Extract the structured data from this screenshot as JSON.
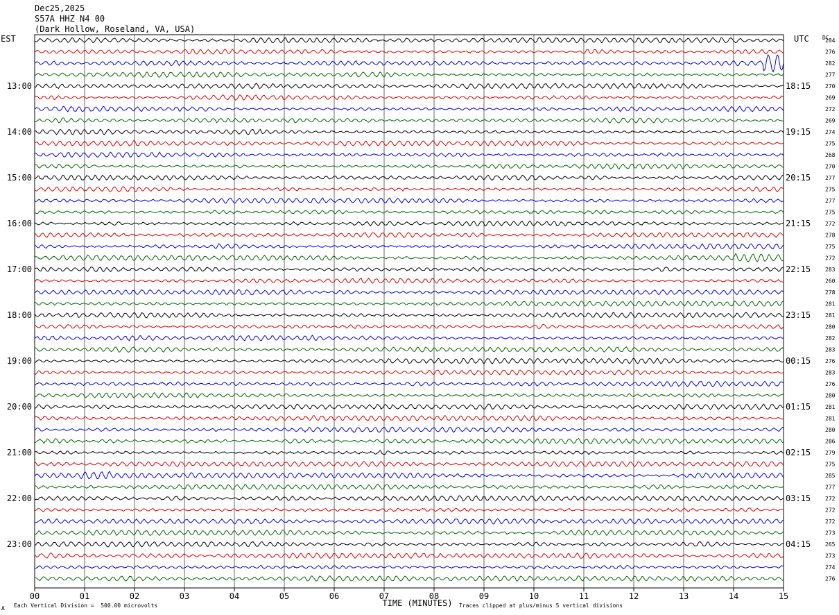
{
  "header": {
    "date": "Dec25,2025",
    "station": "S57A HHZ N4 00",
    "location": "(Dark Hollow, Roseland, VA, USA)"
  },
  "corner": {
    "left_tz": "EST",
    "right_tz": "UTC",
    "dc_label": "DC"
  },
  "footer": {
    "division_note": "Each Vertical Division =  500.00 microvolts",
    "clip_note": "Traces clipped at plus/minus 5 vertical divisions",
    "corner_mark": "A"
  },
  "colors": {
    "cycle": [
      "#000000",
      "#dd0000",
      "#0000dd",
      "#006600"
    ],
    "grid": "#000000"
  },
  "chart_data": {
    "type": "helicorder",
    "xlabel": "TIME (MINUTES)",
    "x_ticks": [
      "00",
      "01",
      "02",
      "03",
      "04",
      "05",
      "06",
      "07",
      "08",
      "09",
      "10",
      "11",
      "12",
      "13",
      "14",
      "15"
    ],
    "xlim": [
      0,
      15
    ],
    "rows_per_hour": 4,
    "est_labels": [
      "13:00",
      "14:00",
      "15:00",
      "16:00",
      "17:00",
      "18:00",
      "19:00",
      "20:00",
      "21:00",
      "22:00",
      "23:00"
    ],
    "utc_labels": [
      "18:15",
      "19:15",
      "20:15",
      "21:15",
      "22:15",
      "23:15",
      "00:15",
      "01:15",
      "02:15",
      "03:15",
      "04:15"
    ],
    "dc_offsets": [
      284,
      276,
      282,
      277,
      270,
      269,
      272,
      269,
      274,
      275,
      268,
      270,
      277,
      275,
      277,
      275,
      272,
      278,
      275,
      272,
      283,
      260,
      278,
      281,
      281,
      280,
      282,
      283,
      276,
      283,
      276,
      280,
      281,
      281,
      280,
      286,
      279,
      275,
      285,
      277,
      272,
      272,
      272,
      273,
      265,
      273,
      274,
      276
    ],
    "events": [
      {
        "row": 1,
        "start_min": 10.9,
        "end_min": 11.7,
        "amp": 2.2
      },
      {
        "row": 2,
        "start_min": 14.6,
        "end_min": 15.0,
        "amp": 3.6
      },
      {
        "row": 18,
        "start_min": 3.2,
        "end_min": 4.2,
        "amp": 1.8
      },
      {
        "row": 19,
        "start_min": 14.0,
        "end_min": 15.0,
        "amp": 1.6
      },
      {
        "row": 21,
        "start_min": 10.3,
        "end_min": 11.1,
        "amp": 1.8
      },
      {
        "row": 38,
        "start_min": 0.9,
        "end_min": 1.5,
        "amp": 1.7
      },
      {
        "row": 36,
        "start_min": 6.8,
        "end_min": 7.1,
        "amp": 1.6
      }
    ]
  }
}
